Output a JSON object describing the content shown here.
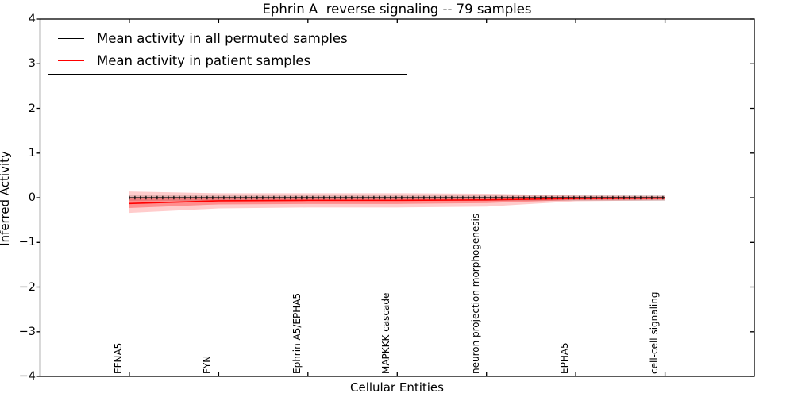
{
  "title": "Ephrin A  reverse signaling -- 79 samples",
  "axes": {
    "xlabel": "Cellular Entities",
    "ylabel": "Inferred Activity"
  },
  "legend": {
    "items": [
      {
        "label": "Mean activity in all permuted samples",
        "color": "#000000"
      },
      {
        "label": "Mean activity in patient samples",
        "color": "#ff0000"
      }
    ]
  },
  "chart_data": {
    "type": "line",
    "title": "Ephrin A  reverse signaling -- 79 samples",
    "xlabel": "Cellular Entities",
    "ylabel": "Inferred Activity",
    "ylim": [
      -4,
      4
    ],
    "yticks": [
      4,
      3,
      2,
      1,
      0,
      -1,
      -2,
      -3,
      -4
    ],
    "grid": false,
    "legend_position": "upper left",
    "categories": [
      "EFNA5",
      "FYN",
      "Ephrin A5/EPHA5",
      "MAPKKK cascade",
      "neuron projection morphogenesis",
      "EPHA5",
      "cell-cell signaling"
    ],
    "series": [
      {
        "name": "Mean activity in all permuted samples",
        "color": "#000000",
        "values": [
          0,
          0,
          0,
          0,
          0,
          0,
          0
        ],
        "band_upper": [
          0.07,
          0.07,
          0.07,
          0.07,
          0.07,
          0.07,
          0.07
        ],
        "band_lower": [
          -0.07,
          -0.07,
          -0.07,
          -0.07,
          -0.07,
          -0.07,
          -0.07
        ],
        "band_color": "rgba(0,0,0,0.13)"
      },
      {
        "name": "Mean activity in patient samples",
        "color": "#ff0000",
        "values": [
          -0.13,
          -0.07,
          -0.06,
          -0.06,
          -0.05,
          -0.02,
          -0.01
        ],
        "band_upper": [
          0.14,
          0.1,
          0.1,
          0.1,
          0.09,
          0.05,
          0.04
        ],
        "band_lower": [
          -0.34,
          -0.24,
          -0.22,
          -0.22,
          -0.2,
          -0.08,
          -0.06
        ],
        "band_color": "rgba(255,0,0,0.20)",
        "inner_band_upper": [
          -0.02,
          0.0,
          0.0,
          0.0,
          0.01,
          0.02,
          0.02
        ],
        "inner_band_lower": [
          -0.23,
          -0.15,
          -0.14,
          -0.14,
          -0.12,
          -0.05,
          -0.04
        ],
        "inner_band_color": "rgba(255,0,0,0.30)"
      }
    ]
  }
}
